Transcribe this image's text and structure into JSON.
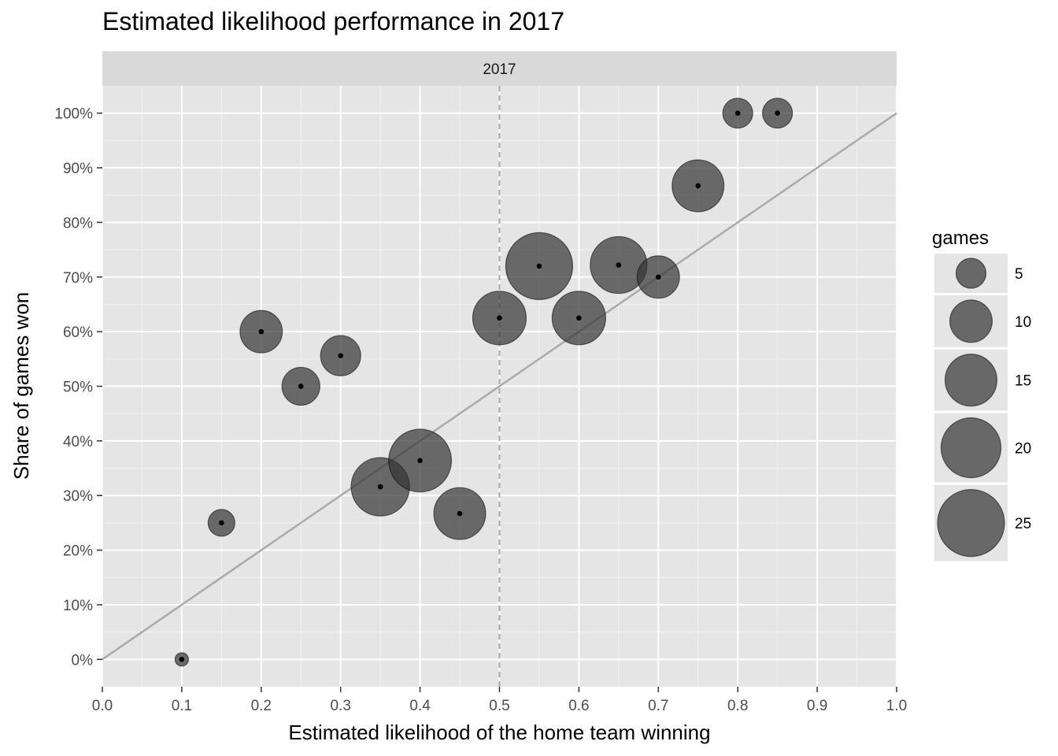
{
  "chart_data": {
    "type": "scatter",
    "title": "Estimated likelihood performance in 2017",
    "facet_label": "2017",
    "xlabel": "Estimated likelihood of the home team winning",
    "ylabel": "Share of games won",
    "xlim": [
      0,
      1
    ],
    "ylim": [
      -0.05,
      1.05
    ],
    "x_ticks": [
      "0.0",
      "0.1",
      "0.2",
      "0.3",
      "0.4",
      "0.5",
      "0.6",
      "0.7",
      "0.8",
      "0.9",
      "1.0"
    ],
    "y_ticks": [
      "0%",
      "10%",
      "20%",
      "30%",
      "40%",
      "50%",
      "60%",
      "70%",
      "80%",
      "90%",
      "100%"
    ],
    "grid": true,
    "reference_line": {
      "type": "diagonal",
      "from": [
        0,
        0
      ],
      "to": [
        1,
        1
      ]
    },
    "vertical_reference": {
      "x": 0.5,
      "style": "dashed"
    },
    "size_variable": "games",
    "points": [
      {
        "x": 0.1,
        "y": 0.0,
        "games": 1
      },
      {
        "x": 0.15,
        "y": 0.25,
        "games": 4
      },
      {
        "x": 0.2,
        "y": 0.6,
        "games": 10
      },
      {
        "x": 0.25,
        "y": 0.5,
        "games": 8
      },
      {
        "x": 0.3,
        "y": 0.556,
        "games": 9
      },
      {
        "x": 0.35,
        "y": 0.316,
        "games": 19
      },
      {
        "x": 0.4,
        "y": 0.364,
        "games": 22
      },
      {
        "x": 0.45,
        "y": 0.267,
        "games": 15
      },
      {
        "x": 0.5,
        "y": 0.625,
        "games": 16
      },
      {
        "x": 0.55,
        "y": 0.72,
        "games": 25
      },
      {
        "x": 0.6,
        "y": 0.625,
        "games": 16
      },
      {
        "x": 0.65,
        "y": 0.722,
        "games": 18
      },
      {
        "x": 0.7,
        "y": 0.7,
        "games": 10
      },
      {
        "x": 0.75,
        "y": 0.867,
        "games": 15
      },
      {
        "x": 0.8,
        "y": 1.0,
        "games": 5
      },
      {
        "x": 0.85,
        "y": 1.0,
        "games": 5
      }
    ],
    "legend": {
      "title": "games",
      "placement": "right",
      "entries": [
        5,
        10,
        15,
        20,
        25
      ]
    }
  },
  "colors": {
    "panel_background": "#e5e5e5",
    "strip_background": "#d9d9d9",
    "grid_major": "#ffffff",
    "grid_minor": "#f2f2f2",
    "point_fill": "#333333",
    "center_dot": "#000000",
    "reference_line": "#aaaaaa"
  }
}
